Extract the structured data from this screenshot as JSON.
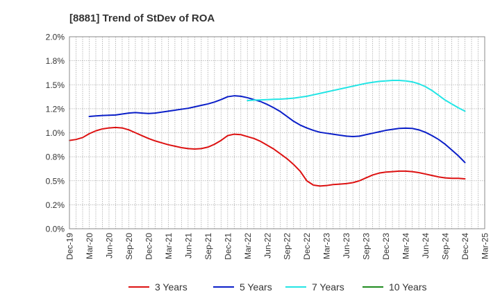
{
  "chart_data": {
    "type": "line",
    "title": "[8881]  Trend of StDev of ROA",
    "xlabel": "",
    "ylabel": "",
    "x_ticks": [
      "Dec-19",
      "Mar-20",
      "Jun-20",
      "Sep-20",
      "Dec-20",
      "Mar-21",
      "Jun-21",
      "Sep-21",
      "Dec-21",
      "Mar-22",
      "Jun-22",
      "Sep-22",
      "Dec-22",
      "Mar-23",
      "Jun-23",
      "Sep-23",
      "Dec-23",
      "Mar-24",
      "Jun-24",
      "Sep-24",
      "Dec-24",
      "Mar-25"
    ],
    "y_ticks": [
      "0.0%",
      "0.2%",
      "0.5%",
      "0.8%",
      "1.0%",
      "1.2%",
      "1.5%",
      "1.8%",
      "2.0%"
    ],
    "ylim": [
      0,
      2.0
    ],
    "grid": true,
    "legend_position": "bottom",
    "series": [
      {
        "name": "3 Years",
        "color": "#dd1111",
        "points": [
          [
            "Dec-19",
            0.92
          ],
          [
            "Jan-20",
            0.93
          ],
          [
            "Feb-20",
            0.95
          ],
          [
            "Mar-20",
            0.99
          ],
          [
            "Apr-20",
            1.02
          ],
          [
            "May-20",
            1.04
          ],
          [
            "Jun-20",
            1.05
          ],
          [
            "Jul-20",
            1.055
          ],
          [
            "Aug-20",
            1.05
          ],
          [
            "Sep-20",
            1.03
          ],
          [
            "Oct-20",
            1.0
          ],
          [
            "Nov-20",
            0.97
          ],
          [
            "Dec-20",
            0.94
          ],
          [
            "Jan-21",
            0.915
          ],
          [
            "Feb-21",
            0.895
          ],
          [
            "Mar-21",
            0.875
          ],
          [
            "Apr-21",
            0.86
          ],
          [
            "May-21",
            0.845
          ],
          [
            "Jun-21",
            0.835
          ],
          [
            "Jul-21",
            0.83
          ],
          [
            "Aug-21",
            0.835
          ],
          [
            "Sep-21",
            0.85
          ],
          [
            "Oct-21",
            0.88
          ],
          [
            "Nov-21",
            0.92
          ],
          [
            "Dec-21",
            0.97
          ],
          [
            "Jan-22",
            0.985
          ],
          [
            "Feb-22",
            0.98
          ],
          [
            "Mar-22",
            0.96
          ],
          [
            "Apr-22",
            0.94
          ],
          [
            "May-22",
            0.91
          ],
          [
            "Jun-22",
            0.87
          ],
          [
            "Jul-22",
            0.83
          ],
          [
            "Aug-22",
            0.78
          ],
          [
            "Sep-22",
            0.73
          ],
          [
            "Oct-22",
            0.67
          ],
          [
            "Nov-22",
            0.6
          ],
          [
            "Dec-22",
            0.5
          ],
          [
            "Jan-23",
            0.455
          ],
          [
            "Feb-23",
            0.445
          ],
          [
            "Mar-23",
            0.45
          ],
          [
            "Apr-23",
            0.46
          ],
          [
            "May-23",
            0.465
          ],
          [
            "Jun-23",
            0.47
          ],
          [
            "Jul-23",
            0.48
          ],
          [
            "Aug-23",
            0.5
          ],
          [
            "Sep-23",
            0.53
          ],
          [
            "Oct-23",
            0.56
          ],
          [
            "Nov-23",
            0.58
          ],
          [
            "Dec-23",
            0.59
          ],
          [
            "Jan-24",
            0.595
          ],
          [
            "Feb-24",
            0.6
          ],
          [
            "Mar-24",
            0.6
          ],
          [
            "Apr-24",
            0.595
          ],
          [
            "May-24",
            0.585
          ],
          [
            "Jun-24",
            0.57
          ],
          [
            "Jul-24",
            0.555
          ],
          [
            "Aug-24",
            0.54
          ],
          [
            "Sep-24",
            0.53
          ],
          [
            "Oct-24",
            0.525
          ],
          [
            "Nov-24",
            0.525
          ],
          [
            "Dec-24",
            0.52
          ]
        ]
      },
      {
        "name": "5 Years",
        "color": "#0a1ec8",
        "points": [
          [
            "Mar-20",
            1.17
          ],
          [
            "Apr-20",
            1.175
          ],
          [
            "May-20",
            1.18
          ],
          [
            "Jun-20",
            1.182
          ],
          [
            "Jul-20",
            1.185
          ],
          [
            "Aug-20",
            1.195
          ],
          [
            "Sep-20",
            1.205
          ],
          [
            "Oct-20",
            1.21
          ],
          [
            "Nov-20",
            1.205
          ],
          [
            "Dec-20",
            1.2
          ],
          [
            "Jan-21",
            1.205
          ],
          [
            "Feb-21",
            1.215
          ],
          [
            "Mar-21",
            1.225
          ],
          [
            "Apr-21",
            1.235
          ],
          [
            "May-21",
            1.245
          ],
          [
            "Jun-21",
            1.255
          ],
          [
            "Jul-21",
            1.27
          ],
          [
            "Aug-21",
            1.285
          ],
          [
            "Sep-21",
            1.3
          ],
          [
            "Oct-21",
            1.32
          ],
          [
            "Nov-21",
            1.345
          ],
          [
            "Dec-21",
            1.375
          ],
          [
            "Jan-22",
            1.385
          ],
          [
            "Feb-22",
            1.38
          ],
          [
            "Mar-22",
            1.365
          ],
          [
            "Apr-22",
            1.345
          ],
          [
            "May-22",
            1.325
          ],
          [
            "Jun-22",
            1.295
          ],
          [
            "Jul-22",
            1.26
          ],
          [
            "Aug-22",
            1.22
          ],
          [
            "Sep-22",
            1.17
          ],
          [
            "Oct-22",
            1.12
          ],
          [
            "Nov-22",
            1.08
          ],
          [
            "Dec-22",
            1.05
          ],
          [
            "Jan-23",
            1.025
          ],
          [
            "Feb-23",
            1.005
          ],
          [
            "Mar-23",
            0.995
          ],
          [
            "Apr-23",
            0.985
          ],
          [
            "May-23",
            0.975
          ],
          [
            "Jun-23",
            0.965
          ],
          [
            "Jul-23",
            0.96
          ],
          [
            "Aug-23",
            0.965
          ],
          [
            "Sep-23",
            0.98
          ],
          [
            "Oct-23",
            0.995
          ],
          [
            "Nov-23",
            1.01
          ],
          [
            "Dec-23",
            1.025
          ],
          [
            "Jan-24",
            1.035
          ],
          [
            "Feb-24",
            1.045
          ],
          [
            "Mar-24",
            1.048
          ],
          [
            "Apr-24",
            1.045
          ],
          [
            "May-24",
            1.03
          ],
          [
            "Jun-24",
            1.005
          ],
          [
            "Jul-24",
            0.97
          ],
          [
            "Aug-24",
            0.93
          ],
          [
            "Sep-24",
            0.88
          ],
          [
            "Oct-24",
            0.82
          ],
          [
            "Nov-24",
            0.76
          ],
          [
            "Dec-24",
            0.69
          ]
        ]
      },
      {
        "name": "7 Years",
        "color": "#22e5e5",
        "points": [
          [
            "Mar-22",
            1.335
          ],
          [
            "Apr-22",
            1.34
          ],
          [
            "May-22",
            1.342
          ],
          [
            "Jun-22",
            1.345
          ],
          [
            "Jul-22",
            1.348
          ],
          [
            "Aug-22",
            1.35
          ],
          [
            "Sep-22",
            1.355
          ],
          [
            "Oct-22",
            1.36
          ],
          [
            "Nov-22",
            1.37
          ],
          [
            "Dec-22",
            1.38
          ],
          [
            "Jan-23",
            1.395
          ],
          [
            "Feb-23",
            1.41
          ],
          [
            "Mar-23",
            1.425
          ],
          [
            "Apr-23",
            1.44
          ],
          [
            "May-23",
            1.455
          ],
          [
            "Jun-23",
            1.47
          ],
          [
            "Jul-23",
            1.485
          ],
          [
            "Aug-23",
            1.5
          ],
          [
            "Sep-23",
            1.515
          ],
          [
            "Oct-23",
            1.525
          ],
          [
            "Nov-23",
            1.535
          ],
          [
            "Dec-23",
            1.54
          ],
          [
            "Jan-24",
            1.545
          ],
          [
            "Feb-24",
            1.545
          ],
          [
            "Mar-24",
            1.54
          ],
          [
            "Apr-24",
            1.53
          ],
          [
            "May-24",
            1.51
          ],
          [
            "Jun-24",
            1.48
          ],
          [
            "Jul-24",
            1.44
          ],
          [
            "Aug-24",
            1.39
          ],
          [
            "Sep-24",
            1.34
          ],
          [
            "Oct-24",
            1.3
          ],
          [
            "Nov-24",
            1.26
          ],
          [
            "Dec-24",
            1.225
          ]
        ]
      },
      {
        "name": "10 Years",
        "color": "#1e8a1e",
        "points": []
      }
    ]
  }
}
